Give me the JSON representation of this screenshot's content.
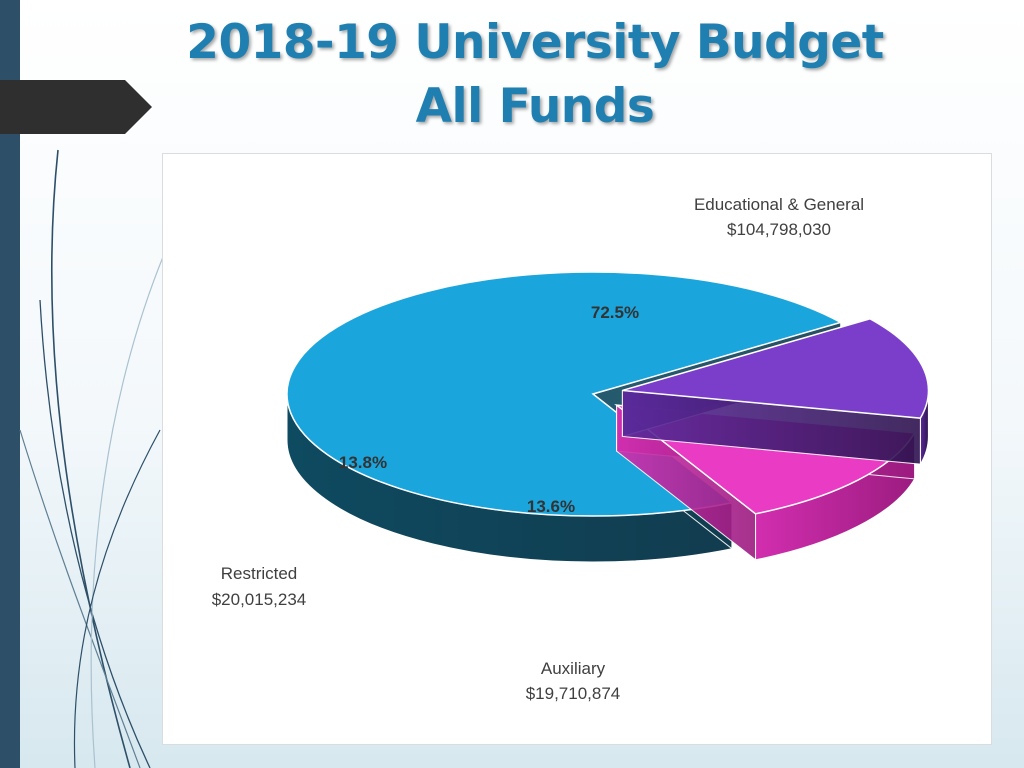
{
  "slide": {
    "title_line1": "2018-19 University Budget",
    "title_line2": "All Funds"
  },
  "chart_data": {
    "type": "pie",
    "title": "2018-19 University Budget All Funds",
    "style": "3d-exploded",
    "slices": [
      {
        "category": "Educational & General",
        "value_label": "$104,798,030",
        "value": 104798030,
        "percent_label": "72.5%",
        "color": "#1ba5dd"
      },
      {
        "category": "Auxiliary",
        "value_label": "$19,710,874",
        "value": 19710874,
        "percent_label": "13.6%",
        "color": "#7b3ecb"
      },
      {
        "category": "Restricted",
        "value_label": "$20,015,234",
        "value": 20015234,
        "percent_label": "13.8%",
        "color": "#e93bc3"
      }
    ]
  }
}
